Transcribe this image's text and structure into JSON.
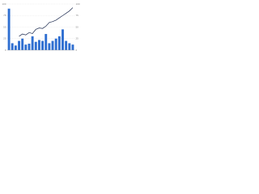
{
  "chart_data": {
    "type": "bar-line",
    "categories": [
      null,
      null,
      null,
      null,
      null,
      null,
      null,
      null,
      null,
      null,
      null,
      null,
      null,
      null,
      null,
      null,
      null,
      null,
      null,
      null
    ],
    "series": [
      {
        "type": "bar",
        "color": "#2f6fd1",
        "values": [
          90,
          15,
          10,
          20,
          25,
          12,
          14,
          30,
          18,
          22,
          20,
          35,
          15,
          20,
          25,
          30,
          45,
          20,
          15,
          12
        ]
      },
      {
        "type": "line",
        "axis": "y2",
        "color": "#1d2b4f",
        "values": [
          null,
          null,
          null,
          30,
          35,
          33,
          38,
          36,
          45,
          48,
          47,
          52,
          60,
          62,
          65,
          70,
          75,
          80,
          85,
          92
        ]
      }
    ],
    "ylim": [
      0,
      100
    ],
    "yticks": [
      0,
      25,
      50,
      75,
      100
    ],
    "y2lim": [
      0,
      100
    ],
    "y2ticks": [
      0,
      25,
      50,
      75,
      100
    ],
    "grid": true
  }
}
